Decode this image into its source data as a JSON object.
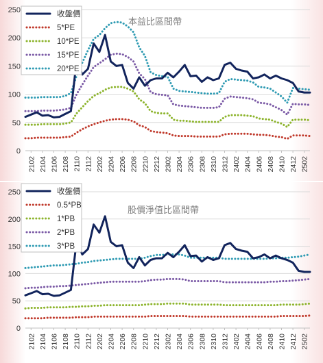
{
  "chart_data": [
    {
      "type": "line",
      "title": "本益比區間帶",
      "ylim": [
        0,
        250
      ],
      "yticks": [
        0,
        50,
        100,
        150,
        200,
        250
      ],
      "x": [
        "2101",
        "2102",
        "2103",
        "2104",
        "2105",
        "2106",
        "2107",
        "2108",
        "2109",
        "2110",
        "2111",
        "2112",
        "2201",
        "2202",
        "2203",
        "2204",
        "2205",
        "2206",
        "2207",
        "2208",
        "2209",
        "2210",
        "2211",
        "2212",
        "2301",
        "2302",
        "2303",
        "2304",
        "2305",
        "2306",
        "2307",
        "2308",
        "2309",
        "2310",
        "2311",
        "2312",
        "2401",
        "2402",
        "2403",
        "2404",
        "2405",
        "2406",
        "2407",
        "2408",
        "2409",
        "2410",
        "2411",
        "2412",
        "2501",
        "2502",
        "2503"
      ],
      "xticklabels": [
        "2102",
        "2104",
        "2106",
        "2108",
        "2110",
        "2112",
        "2202",
        "2204",
        "2206",
        "2208",
        "2210",
        "2212",
        "2302",
        "2304",
        "2306",
        "2308",
        "2310",
        "2312",
        "2402",
        "2404",
        "2406",
        "2408",
        "2410",
        "2412",
        "2502"
      ],
      "grid": true,
      "legend_position": "top-left",
      "series": [
        {
          "name": "收盤價",
          "style": "solid",
          "color": "#12245c",
          "values": [
            60,
            64,
            68,
            62,
            63,
            59,
            60,
            65,
            70,
            160,
            135,
            145,
            190,
            175,
            205,
            158,
            150,
            152,
            120,
            110,
            130,
            115,
            125,
            128,
            128,
            138,
            130,
            140,
            152,
            132,
            133,
            122,
            130,
            125,
            128,
            152,
            156,
            145,
            142,
            140,
            128,
            130,
            135,
            128,
            133,
            128,
            125,
            120,
            105,
            103,
            103
          ]
        },
        {
          "name": "5*PE",
          "style": "dotted",
          "color": "#c0392b",
          "values": [
            22,
            22,
            23,
            23,
            23,
            23,
            23,
            24,
            25,
            32,
            38,
            43,
            47,
            50,
            53,
            55,
            56,
            56,
            55,
            52,
            45,
            42,
            35,
            33,
            32,
            31,
            27,
            26,
            26,
            26,
            25,
            25,
            25,
            25,
            25,
            29,
            30,
            30,
            30,
            30,
            29,
            28,
            28,
            27,
            25,
            24,
            21,
            27,
            27,
            27,
            26
          ]
        },
        {
          "name": "10*PE",
          "style": "dotted",
          "color": "#8db42d",
          "values": [
            46,
            46,
            46,
            47,
            47,
            47,
            47,
            48,
            50,
            66,
            77,
            88,
            97,
            102,
            108,
            112,
            113,
            113,
            110,
            105,
            91,
            84,
            70,
            67,
            66,
            66,
            55,
            53,
            53,
            52,
            51,
            51,
            51,
            51,
            51,
            60,
            63,
            63,
            63,
            62,
            61,
            57,
            56,
            55,
            51,
            48,
            42,
            55,
            55,
            55,
            54
          ]
        },
        {
          "name": "15*PE",
          "style": "dotted",
          "color": "#7b5aa6",
          "values": [
            70,
            70,
            70,
            71,
            71,
            71,
            72,
            73,
            76,
            100,
            117,
            133,
            148,
            155,
            162,
            170,
            172,
            171,
            166,
            158,
            137,
            127,
            104,
            100,
            99,
            98,
            82,
            80,
            79,
            78,
            77,
            76,
            76,
            76,
            77,
            92,
            96,
            95,
            94,
            93,
            91,
            85,
            84,
            82,
            77,
            72,
            64,
            83,
            82,
            82,
            81
          ]
        },
        {
          "name": "20*PE",
          "style": "dotted",
          "color": "#2f9bb3",
          "values": [
            94,
            94,
            94,
            95,
            95,
            95,
            95,
            97,
            102,
            133,
            156,
            178,
            198,
            205,
            217,
            226,
            228,
            227,
            220,
            210,
            183,
            168,
            139,
            134,
            132,
            131,
            110,
            106,
            105,
            104,
            103,
            102,
            101,
            101,
            102,
            122,
            127,
            126,
            125,
            124,
            121,
            113,
            112,
            110,
            103,
            96,
            85,
            111,
            110,
            109,
            108
          ]
        }
      ]
    },
    {
      "type": "line",
      "title": "股價淨值比區間帶",
      "ylim": [
        0,
        250
      ],
      "yticks": [
        0,
        50,
        100,
        150,
        200,
        250
      ],
      "x": [
        "2101",
        "2102",
        "2103",
        "2104",
        "2105",
        "2106",
        "2107",
        "2108",
        "2109",
        "2110",
        "2111",
        "2112",
        "2201",
        "2202",
        "2203",
        "2204",
        "2205",
        "2206",
        "2207",
        "2208",
        "2209",
        "2210",
        "2211",
        "2212",
        "2301",
        "2302",
        "2303",
        "2304",
        "2305",
        "2306",
        "2307",
        "2308",
        "2309",
        "2310",
        "2311",
        "2312",
        "2401",
        "2402",
        "2403",
        "2404",
        "2405",
        "2406",
        "2407",
        "2408",
        "2409",
        "2410",
        "2411",
        "2412",
        "2501",
        "2502",
        "2503"
      ],
      "xticklabels": [
        "2102",
        "2104",
        "2106",
        "2108",
        "2110",
        "2112",
        "2202",
        "2204",
        "2206",
        "2208",
        "2210",
        "2212",
        "2302",
        "2304",
        "2306",
        "2308",
        "2310",
        "2312",
        "2402",
        "2404",
        "2406",
        "2408",
        "2410",
        "2412",
        "2502"
      ],
      "grid": true,
      "legend_position": "top-left",
      "series": [
        {
          "name": "收盤價",
          "style": "solid",
          "color": "#12245c",
          "values": [
            60,
            64,
            68,
            62,
            63,
            59,
            60,
            65,
            70,
            160,
            135,
            145,
            190,
            175,
            205,
            158,
            150,
            152,
            120,
            110,
            130,
            115,
            125,
            128,
            128,
            138,
            130,
            140,
            152,
            132,
            133,
            122,
            130,
            125,
            128,
            152,
            156,
            145,
            142,
            140,
            128,
            130,
            135,
            128,
            133,
            128,
            125,
            120,
            105,
            103,
            103
          ]
        },
        {
          "name": "0.5*PB",
          "style": "dotted",
          "color": "#c0392b",
          "values": [
            18,
            18,
            18,
            18,
            19,
            19,
            19,
            19,
            19,
            20,
            20,
            20,
            21,
            21,
            21,
            21,
            21,
            21,
            21,
            21,
            21,
            21,
            22,
            22,
            22,
            22,
            22,
            22,
            22,
            21,
            21,
            21,
            21,
            21,
            21,
            21,
            21,
            21,
            21,
            21,
            21,
            21,
            21,
            21,
            21,
            22,
            22,
            22,
            22,
            22,
            23
          ]
        },
        {
          "name": "1*PB",
          "style": "dotted",
          "color": "#8db42d",
          "values": [
            36,
            37,
            37,
            37,
            38,
            38,
            38,
            38,
            39,
            39,
            40,
            40,
            41,
            41,
            42,
            42,
            42,
            42,
            42,
            42,
            42,
            43,
            44,
            44,
            44,
            45,
            45,
            45,
            45,
            43,
            43,
            43,
            43,
            43,
            43,
            42,
            42,
            42,
            42,
            42,
            42,
            42,
            42,
            42,
            42,
            43,
            43,
            43,
            43,
            44,
            45
          ]
        },
        {
          "name": "2*PB",
          "style": "dotted",
          "color": "#7b5aa6",
          "values": [
            73,
            74,
            74,
            75,
            76,
            76,
            77,
            77,
            78,
            79,
            80,
            81,
            82,
            83,
            84,
            85,
            85,
            85,
            85,
            85,
            85,
            86,
            88,
            89,
            89,
            90,
            90,
            90,
            89,
            86,
            86,
            86,
            86,
            86,
            86,
            84,
            84,
            84,
            84,
            84,
            84,
            84,
            84,
            85,
            85,
            86,
            86,
            87,
            88,
            89,
            90
          ]
        },
        {
          "name": "3*PB",
          "style": "dotted",
          "color": "#2f9bb3",
          "values": [
            110,
            111,
            112,
            113,
            114,
            115,
            115,
            116,
            117,
            118,
            120,
            121,
            123,
            124,
            125,
            126,
            127,
            127,
            127,
            127,
            127,
            129,
            132,
            134,
            134,
            135,
            135,
            135,
            133,
            129,
            129,
            129,
            129,
            129,
            129,
            127,
            127,
            127,
            127,
            127,
            127,
            127,
            127,
            128,
            128,
            129,
            129,
            130,
            131,
            133,
            135
          ]
        }
      ]
    }
  ]
}
